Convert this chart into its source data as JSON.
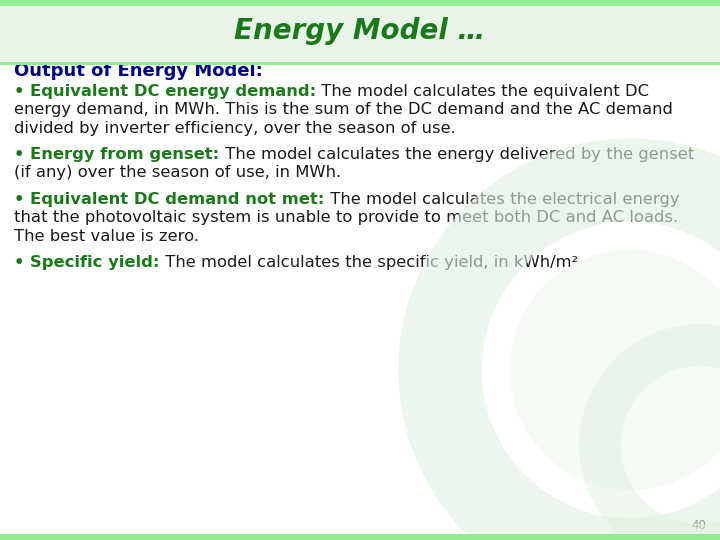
{
  "title": "Energy Model …",
  "title_color": "#1a7a1a",
  "title_fontsize": 20,
  "header_bg_color": "#e8f5e8",
  "header_top_color": "#90ee90",
  "bg_color": "#ffffff",
  "slide_number": "40",
  "section_heading": "Output of Energy Model:",
  "section_heading_color": "#00008B",
  "section_heading_fontsize": 13,
  "body_text_color": "#1a1a1a",
  "bold_color": "#1a7a1a",
  "body_fontsize": 11.8,
  "watermark_color": "#e0f0e0",
  "items": [
    {
      "bold": "Equivalent DC energy demand:",
      "normal": " The model calculates the equivalent DC energy demand, in MWh.  This is the sum of the DC demand and the AC demand divided by inverter efficiency, over the season of use."
    },
    {
      "bold": "Energy from genset:",
      "normal": " The model calculates the energy delivered by the genset (if any) over the season of use, in MWh."
    },
    {
      "bold": "Equivalent DC demand not met:",
      "normal": " The model calculates the electrical energy that the photovoltaic system is unable to provide to meet both DC and AC loads. The best value is zero."
    },
    {
      "bold": "Specific yield:",
      "normal": " The model calculates the specific yield, in kWh/m²"
    }
  ]
}
